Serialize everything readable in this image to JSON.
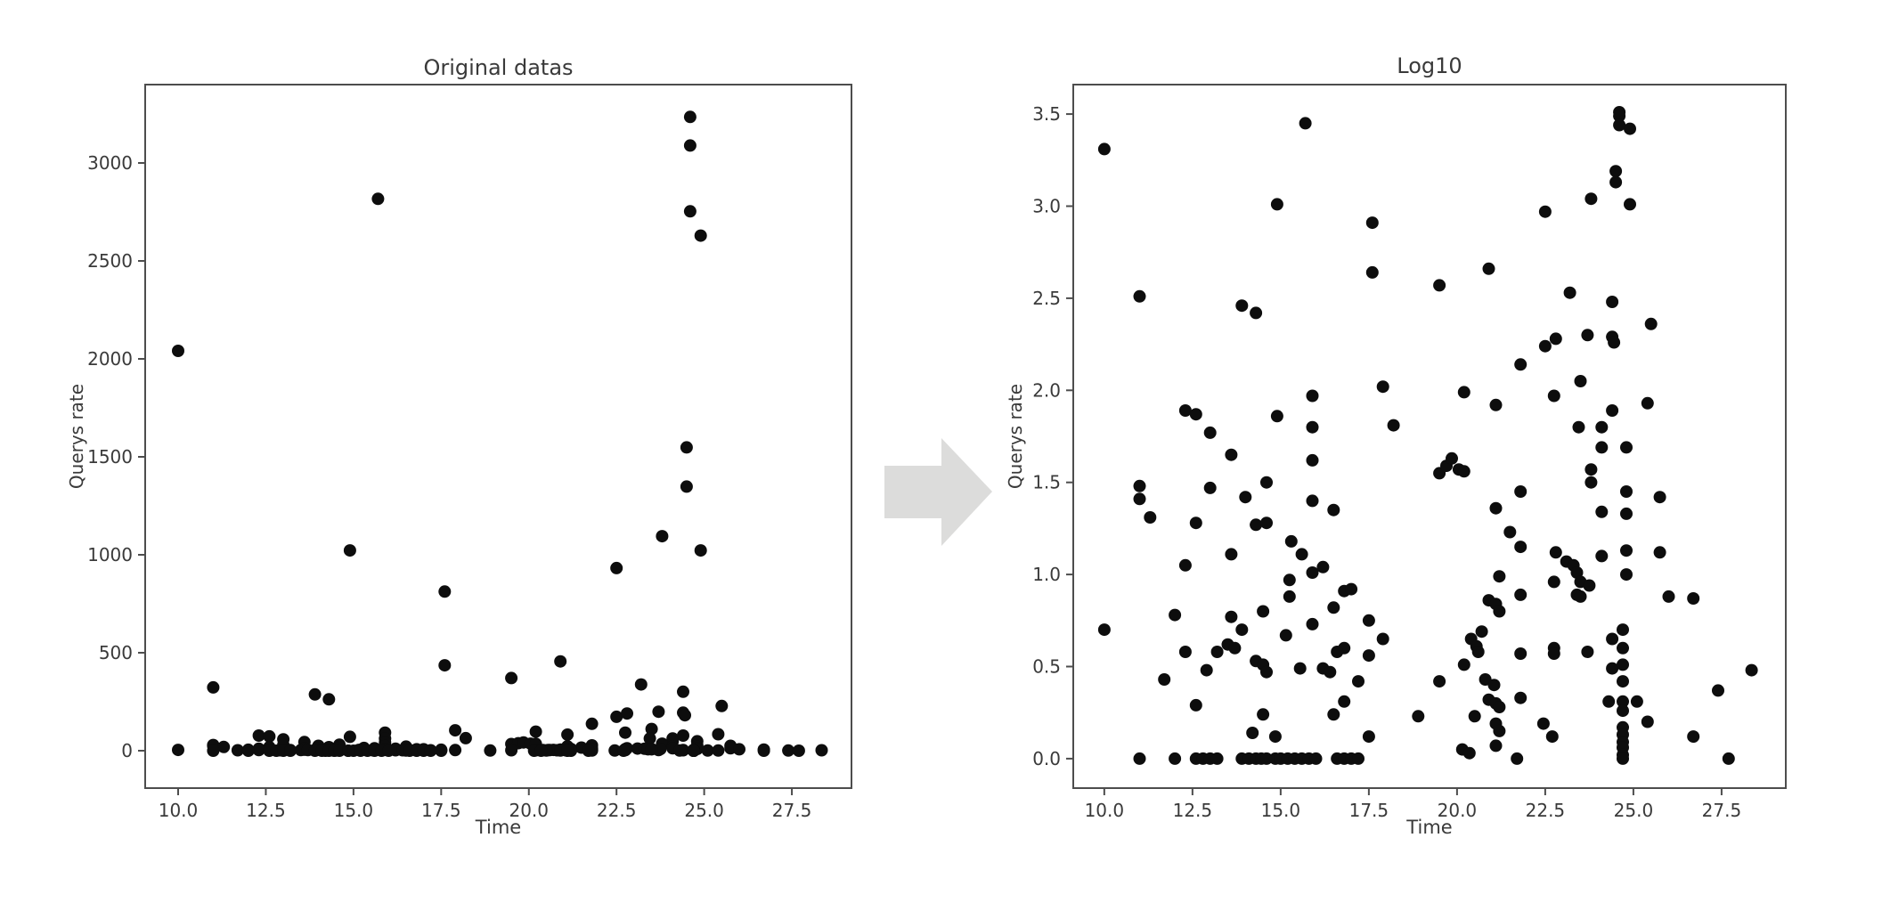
{
  "figure": {
    "description": "Two scatter plots: raw query-rate data and its log10 transform, joined by a right arrow"
  },
  "chart_data": {
    "type": "scatter",
    "points_format": [
      "time",
      "querys_rate",
      "log10_querys_rate"
    ],
    "style": {
      "dot_color": "#0d0d0d",
      "dot_radius": 7,
      "spine_color": "#4d4d4d",
      "tick_color": "#4d4d4d",
      "text_color": "#3a3a3a",
      "arrow_color": "#dcdcdb",
      "background": "#ffffff",
      "grid": false,
      "legend": false
    },
    "charts": [
      {
        "id": "original",
        "title": "Original datas",
        "xlabel": "Time",
        "ylabel": "Querys rate",
        "xlim": [
          9.06,
          29.2
        ],
        "ylim": [
          -191,
          3400
        ],
        "y_index": 1,
        "xticks": {
          "values": [
            10,
            12.5,
            15,
            17.5,
            20,
            22.5,
            25,
            27.5
          ],
          "labels": [
            "10.0",
            "12.5",
            "15.0",
            "17.5",
            "20.0",
            "22.5",
            "25.0",
            "27.5"
          ]
        },
        "yticks": {
          "values": [
            0,
            500,
            1000,
            1500,
            2000,
            2500,
            3000
          ],
          "labels": [
            "0",
            "500",
            "1000",
            "1500",
            "2000",
            "2500",
            "3000"
          ]
        }
      },
      {
        "id": "log10",
        "title": "Log10",
        "xlabel": "Time",
        "ylabel": "Querys rate",
        "xlim": [
          9.12,
          29.32
        ],
        "ylim": [
          -0.16,
          3.66
        ],
        "y_index": 2,
        "xticks": {
          "values": [
            10,
            12.5,
            15,
            17.5,
            20,
            22.5,
            25,
            27.5
          ],
          "labels": [
            "10.0",
            "12.5",
            "15.0",
            "17.5",
            "20.0",
            "22.5",
            "25.0",
            "27.5"
          ]
        },
        "yticks": {
          "values": [
            0,
            0.5,
            1.0,
            1.5,
            2.0,
            2.5,
            3.0,
            3.5
          ],
          "labels": [
            "0.0",
            "0.5",
            "1.0",
            "1.5",
            "2.0",
            "2.5",
            "3.0",
            "3.5"
          ]
        }
      }
    ],
    "points": [
      [
        10.0,
        2041,
        3.31
      ],
      [
        15.7,
        2817,
        3.45
      ],
      [
        14.9,
        1022,
        3.01
      ],
      [
        11.0,
        323,
        2.51
      ],
      [
        13.9,
        287,
        2.46
      ],
      [
        14.3,
        262,
        2.42
      ],
      [
        12.3,
        77,
        1.89
      ],
      [
        12.6,
        73,
        1.87
      ],
      [
        14.9,
        71,
        1.86
      ],
      [
        15.9,
        92,
        1.97
      ],
      [
        15.9,
        62,
        1.8
      ],
      [
        13.0,
        58,
        1.77
      ],
      [
        17.6,
        812,
        2.91
      ],
      [
        22.5,
        932,
        2.97
      ],
      [
        23.8,
        1095,
        3.04
      ],
      [
        17.6,
        436,
        2.64
      ],
      [
        19.5,
        371,
        2.57
      ],
      [
        20.9,
        456,
        2.66
      ],
      [
        23.2,
        338,
        2.53
      ],
      [
        22.5,
        173,
        2.24
      ],
      [
        22.8,
        190,
        2.28
      ],
      [
        23.7,
        199,
        2.3
      ],
      [
        24.4,
        194,
        2.29
      ],
      [
        24.45,
        181,
        2.26
      ],
      [
        21.8,
        137,
        2.14
      ],
      [
        17.9,
        104,
        2.02
      ],
      [
        20.2,
        97,
        1.99
      ],
      [
        21.1,
        82,
        1.92
      ],
      [
        22.75,
        92,
        1.97
      ],
      [
        23.5,
        111,
        2.05
      ],
      [
        18.2,
        64,
        1.81
      ],
      [
        23.45,
        62,
        1.8
      ],
      [
        24.1,
        62,
        1.8
      ],
      [
        24.6,
        3235,
        3.51
      ],
      [
        24.6,
        3089,
        3.49
      ],
      [
        24.6,
        2753,
        3.44
      ],
      [
        24.9,
        2629,
        3.42
      ],
      [
        24.5,
        1548,
        3.19
      ],
      [
        24.5,
        1348,
        3.13
      ],
      [
        24.9,
        1022,
        3.01
      ],
      [
        24.4,
        301,
        2.48
      ],
      [
        25.5,
        228,
        2.36
      ],
      [
        25.4,
        84,
        1.93
      ],
      [
        24.4,
        77,
        1.89
      ],
      [
        13.6,
        44,
        1.65
      ],
      [
        15.9,
        41,
        1.62
      ],
      [
        11.0,
        29,
        1.48
      ],
      [
        11.0,
        25,
        1.41
      ],
      [
        13.0,
        29,
        1.47
      ],
      [
        14.6,
        31,
        1.5
      ],
      [
        14.0,
        25,
        1.42
      ],
      [
        15.9,
        24,
        1.4
      ],
      [
        11.3,
        19,
        1.31
      ],
      [
        12.6,
        18,
        1.28
      ],
      [
        14.3,
        18,
        1.27
      ],
      [
        14.6,
        18,
        1.28
      ],
      [
        13.6,
        12,
        1.11
      ],
      [
        12.3,
        10,
        1.05
      ],
      [
        15.3,
        14,
        1.18
      ],
      [
        15.6,
        12,
        1.11
      ],
      [
        15.9,
        9,
        1.01
      ],
      [
        16.2,
        10,
        1.04
      ],
      [
        15.25,
        8,
        0.97
      ],
      [
        15.25,
        7,
        0.88
      ],
      [
        16.5,
        6,
        0.82
      ],
      [
        12.0,
        5,
        0.78
      ],
      [
        13.6,
        5,
        0.77
      ],
      [
        14.5,
        5,
        0.8
      ],
      [
        10.0,
        4,
        0.7
      ],
      [
        13.9,
        4,
        0.7
      ],
      [
        15.9,
        4,
        0.73
      ],
      [
        15.15,
        4,
        0.67
      ],
      [
        12.3,
        3,
        0.58
      ],
      [
        13.2,
        3,
        0.58
      ],
      [
        13.5,
        3,
        0.62
      ],
      [
        13.7,
        3,
        0.6
      ],
      [
        12.9,
        2,
        0.48
      ],
      [
        11.7,
        2,
        0.43
      ],
      [
        14.3,
        2,
        0.53
      ],
      [
        14.5,
        2,
        0.51
      ],
      [
        14.6,
        2,
        0.47
      ],
      [
        15.55,
        2,
        0.49
      ],
      [
        16.2,
        2,
        0.49
      ],
      [
        16.4,
        2,
        0.47
      ],
      [
        12.6,
        1,
        0.29
      ],
      [
        14.5,
        1,
        0.24
      ],
      [
        14.2,
        0,
        0.14
      ],
      [
        14.85,
        0,
        0.12
      ],
      [
        11.0,
        0,
        0.0
      ],
      [
        12.0,
        0,
        0.0
      ],
      [
        12.6,
        0,
        0.0
      ],
      [
        12.8,
        0,
        0.0
      ],
      [
        13.0,
        0,
        0.0
      ],
      [
        13.2,
        0,
        0.0
      ],
      [
        13.9,
        0,
        0.0
      ],
      [
        14.1,
        0,
        0.0
      ],
      [
        14.3,
        0,
        0.0
      ],
      [
        14.45,
        0,
        0.0
      ],
      [
        14.6,
        0,
        0.0
      ],
      [
        14.85,
        0,
        0.0
      ],
      [
        15.0,
        0,
        0.0
      ],
      [
        15.2,
        0,
        0.0
      ],
      [
        15.4,
        0,
        0.0
      ],
      [
        15.6,
        0,
        0.0
      ],
      [
        15.8,
        0,
        0.0
      ],
      [
        16.0,
        0,
        0.0
      ],
      [
        19.5,
        34,
        1.55
      ],
      [
        19.7,
        38,
        1.59
      ],
      [
        19.85,
        42,
        1.63
      ],
      [
        20.05,
        36,
        1.57
      ],
      [
        20.2,
        35,
        1.56
      ],
      [
        21.8,
        27,
        1.45
      ],
      [
        21.1,
        22,
        1.36
      ],
      [
        16.5,
        21,
        1.35
      ],
      [
        21.5,
        16,
        1.23
      ],
      [
        21.8,
        13,
        1.15
      ],
      [
        22.8,
        12,
        1.12
      ],
      [
        23.1,
        11,
        1.07
      ],
      [
        23.3,
        10,
        1.05
      ],
      [
        23.4,
        9,
        1.01
      ],
      [
        23.5,
        8,
        0.96
      ],
      [
        22.75,
        8,
        0.96
      ],
      [
        21.2,
        9,
        0.99
      ],
      [
        20.9,
        6,
        0.86
      ],
      [
        21.1,
        6,
        0.84
      ],
      [
        21.2,
        5,
        0.8
      ],
      [
        21.8,
        7,
        0.89
      ],
      [
        16.8,
        7,
        0.91
      ],
      [
        17.0,
        7,
        0.92
      ],
      [
        17.5,
        5,
        0.75
      ],
      [
        17.9,
        3,
        0.65
      ],
      [
        17.5,
        3,
        0.56
      ],
      [
        16.8,
        3,
        0.6
      ],
      [
        16.6,
        3,
        0.58
      ],
      [
        20.4,
        3,
        0.65
      ],
      [
        20.7,
        4,
        0.69
      ],
      [
        20.55,
        3,
        0.61
      ],
      [
        20.6,
        3,
        0.58
      ],
      [
        20.2,
        2,
        0.51
      ],
      [
        21.8,
        3,
        0.57
      ],
      [
        22.75,
        3,
        0.6
      ],
      [
        22.75,
        3,
        0.57
      ],
      [
        23.7,
        3,
        0.58
      ],
      [
        17.2,
        2,
        0.42
      ],
      [
        19.5,
        2,
        0.42
      ],
      [
        20.8,
        2,
        0.43
      ],
      [
        21.05,
        2,
        0.4
      ],
      [
        16.8,
        1,
        0.31
      ],
      [
        20.9,
        1,
        0.32
      ],
      [
        21.1,
        1,
        0.3
      ],
      [
        21.2,
        1,
        0.28
      ],
      [
        21.8,
        1,
        0.33
      ],
      [
        16.5,
        1,
        0.24
      ],
      [
        18.9,
        1,
        0.23
      ],
      [
        20.5,
        1,
        0.23
      ],
      [
        22.45,
        1,
        0.19
      ],
      [
        22.7,
        0,
        0.12
      ],
      [
        21.1,
        1,
        0.19
      ],
      [
        21.2,
        0,
        0.15
      ],
      [
        17.5,
        0,
        0.12
      ],
      [
        21.1,
        0,
        0.07
      ],
      [
        20.15,
        0,
        0.05
      ],
      [
        20.35,
        0,
        0.03
      ],
      [
        16.6,
        0,
        0.0
      ],
      [
        16.8,
        0,
        0.0
      ],
      [
        17.0,
        0,
        0.0
      ],
      [
        17.2,
        0,
        0.0
      ],
      [
        21.7,
        0,
        0.0
      ],
      [
        24.1,
        48,
        1.69
      ],
      [
        24.8,
        48,
        1.69
      ],
      [
        23.8,
        36,
        1.57
      ],
      [
        23.8,
        31,
        1.5
      ],
      [
        24.8,
        27,
        1.45
      ],
      [
        25.75,
        25,
        1.42
      ],
      [
        24.1,
        21,
        1.34
      ],
      [
        24.8,
        20,
        1.33
      ],
      [
        24.1,
        12,
        1.1
      ],
      [
        24.8,
        12,
        1.13
      ],
      [
        25.75,
        12,
        1.12
      ],
      [
        24.8,
        9,
        1.0
      ],
      [
        23.75,
        8,
        0.94
      ],
      [
        23.4,
        7,
        0.89
      ],
      [
        23.5,
        7,
        0.88
      ],
      [
        26.0,
        7,
        0.88
      ],
      [
        26.7,
        6,
        0.87
      ],
      [
        24.7,
        4,
        0.7
      ],
      [
        24.4,
        3,
        0.65
      ],
      [
        24.7,
        3,
        0.6
      ],
      [
        24.4,
        2,
        0.49
      ],
      [
        24.7,
        2,
        0.51
      ],
      [
        24.7,
        2,
        0.42
      ],
      [
        28.35,
        2,
        0.48
      ],
      [
        27.4,
        1,
        0.37
      ],
      [
        24.3,
        1,
        0.31
      ],
      [
        24.7,
        1,
        0.31
      ],
      [
        25.1,
        1,
        0.31
      ],
      [
        24.7,
        1,
        0.26
      ],
      [
        25.4,
        1,
        0.2
      ],
      [
        24.7,
        0,
        0.17
      ],
      [
        24.7,
        0,
        0.13
      ],
      [
        24.7,
        0,
        0.09
      ],
      [
        24.7,
        0,
        0.06
      ],
      [
        24.7,
        0,
        0.02
      ],
      [
        24.7,
        0,
        0.0
      ],
      [
        26.7,
        0,
        0.12
      ],
      [
        27.7,
        0,
        0.0
      ]
    ]
  },
  "arrow": {
    "meaning": "transform-direction",
    "color": "#dcdcdb"
  }
}
